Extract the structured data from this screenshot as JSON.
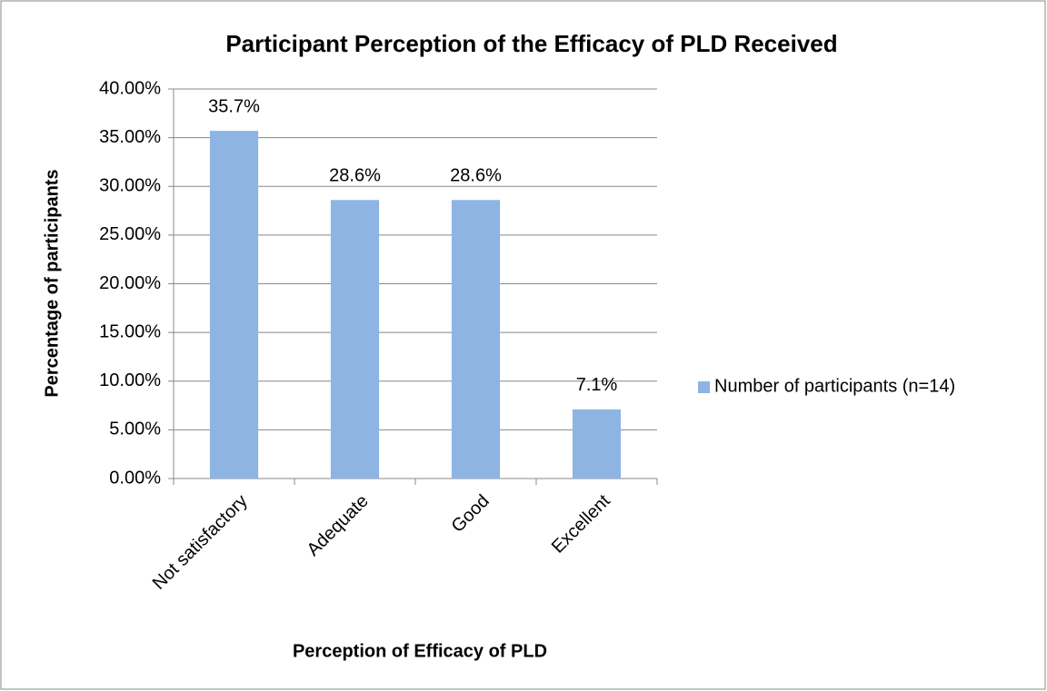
{
  "chart_data": {
    "type": "bar",
    "title": "Participant Perception of the Efficacy of PLD Received",
    "x_label": "Perception of Efficacy of PLD",
    "y_label": "Percentage of participants",
    "categories": [
      "Not satisfactory",
      "Adequate",
      "Good",
      "Excellent"
    ],
    "series": [
      {
        "name": "Number of participants (n=14)",
        "color": "#8eb4e3",
        "values": [
          35.7,
          28.6,
          28.6,
          7.1
        ],
        "value_labels": [
          "35.7%",
          "28.6%",
          "28.6%",
          "7.1%"
        ]
      }
    ],
    "ylim": [
      0,
      40
    ],
    "yticks": [
      {
        "value": 0,
        "label": "0.00%"
      },
      {
        "value": 5,
        "label": "5.00%"
      },
      {
        "value": 10,
        "label": "10.00%"
      },
      {
        "value": 15,
        "label": "15.00%"
      },
      {
        "value": 20,
        "label": "20.00%"
      },
      {
        "value": 25,
        "label": "25.00%"
      },
      {
        "value": 30,
        "label": "30.00%"
      },
      {
        "value": 35,
        "label": "35.00%"
      },
      {
        "value": 40,
        "label": "40.00%"
      }
    ],
    "grid": true,
    "legend": "right"
  }
}
